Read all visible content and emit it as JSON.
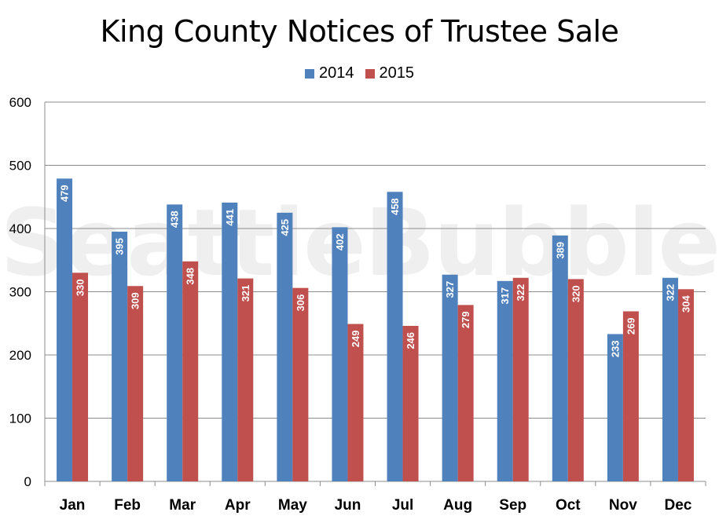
{
  "chart_data": {
    "type": "bar",
    "title": "King County Notices of Trustee Sale",
    "xlabel": "",
    "ylabel": "",
    "ylim": [
      0,
      600
    ],
    "yticks": [
      0,
      100,
      200,
      300,
      400,
      500,
      600
    ],
    "grid": true,
    "legend_position": "top",
    "categories": [
      "Jan",
      "Feb",
      "Mar",
      "Apr",
      "May",
      "Jun",
      "Jul",
      "Aug",
      "Sep",
      "Oct",
      "Nov",
      "Dec"
    ],
    "series": [
      {
        "name": "2014",
        "color": "#4f81bd",
        "values": [
          479,
          395,
          438,
          441,
          425,
          402,
          458,
          327,
          317,
          389,
          233,
          322
        ]
      },
      {
        "name": "2015",
        "color": "#c0504d",
        "values": [
          330,
          309,
          348,
          321,
          306,
          249,
          246,
          279,
          322,
          320,
          269,
          304
        ]
      }
    ]
  },
  "watermark": "SeattleBubble.com"
}
